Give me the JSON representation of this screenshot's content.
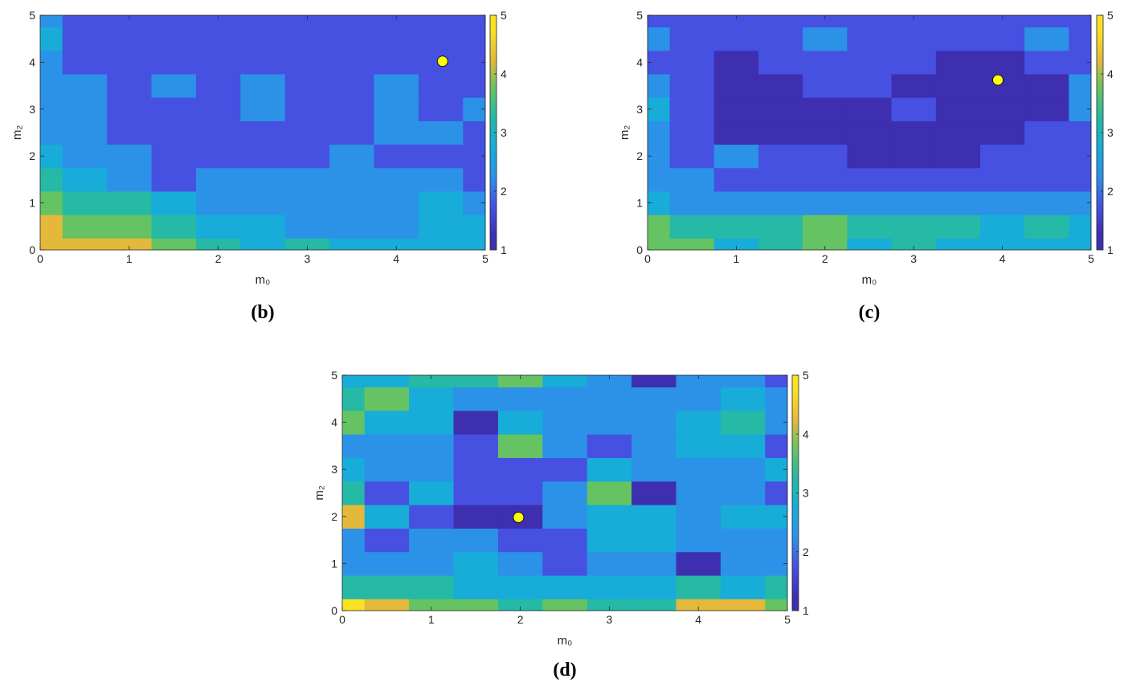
{
  "chart_data": [
    {
      "type": "contour",
      "panel_label": "(b)",
      "xlabel": "m₀",
      "ylabel": "m₂",
      "x": [
        0,
        0.5,
        1,
        1.5,
        2,
        2.5,
        3,
        3.5,
        4,
        4.5,
        5
      ],
      "y": [
        0,
        0.5,
        1,
        1.5,
        2,
        2.5,
        3,
        3.5,
        4,
        4.5,
        5
      ],
      "z": [
        [
          4.3,
          4.4,
          4.2,
          3.8,
          3.2,
          2.9,
          3.3,
          2.8,
          2.6,
          2.6,
          2.5
        ],
        [
          4.0,
          3.9,
          3.8,
          3.3,
          2.8,
          2.5,
          2.4,
          2.4,
          2.4,
          2.7,
          2.5
        ],
        [
          3.6,
          3.4,
          3.1,
          2.7,
          2.4,
          2.2,
          2.1,
          2.1,
          2.3,
          2.7,
          2.2
        ],
        [
          3.0,
          2.6,
          2.3,
          1.9,
          2.0,
          2.2,
          2.1,
          2.1,
          2.1,
          2.1,
          1.9
        ],
        [
          2.7,
          2.2,
          2.1,
          1.8,
          1.7,
          1.8,
          1.8,
          2.0,
          1.7,
          1.7,
          1.7
        ],
        [
          2.3,
          2.1,
          1.8,
          1.7,
          1.6,
          1.6,
          1.7,
          1.8,
          2.3,
          2.1,
          1.8
        ],
        [
          2.2,
          2.0,
          1.7,
          1.6,
          1.7,
          2.2,
          1.6,
          1.7,
          2.0,
          1.9,
          2.0
        ],
        [
          2.1,
          2.0,
          1.7,
          2.2,
          1.6,
          2.2,
          1.6,
          1.6,
          2.0,
          1.7,
          1.6
        ],
        [
          2.1,
          1.9,
          1.7,
          1.6,
          1.6,
          1.6,
          1.6,
          1.6,
          1.6,
          1.5,
          1.6
        ],
        [
          2.6,
          1.9,
          1.6,
          1.6,
          1.6,
          1.6,
          1.6,
          1.6,
          1.6,
          1.6,
          1.6
        ],
        [
          2.1,
          1.9,
          1.6,
          1.6,
          1.6,
          1.6,
          1.6,
          1.6,
          1.6,
          1.6,
          1.6
        ]
      ],
      "point": {
        "x": 4.52,
        "y": 4.02
      },
      "point_color": "#ffff00",
      "xlim": [
        0,
        5
      ],
      "ylim": [
        0,
        5
      ],
      "xticks": [
        0,
        1,
        2,
        3,
        4,
        5
      ],
      "yticks": [
        0,
        1,
        2,
        3,
        4,
        5
      ],
      "clim": [
        1,
        5
      ],
      "cticks": [
        1,
        2,
        3,
        4,
        5
      ]
    },
    {
      "type": "contour",
      "panel_label": "(c)",
      "xlabel": "m₀",
      "ylabel": "m₂",
      "x": [
        0,
        0.5,
        1,
        1.5,
        2,
        2.5,
        3,
        3.5,
        4,
        4.5,
        5
      ],
      "y": [
        0,
        0.5,
        1,
        1.5,
        2,
        2.5,
        3,
        3.5,
        4,
        4.5,
        5
      ],
      "z": [
        [
          3.9,
          3.6,
          2.5,
          3.4,
          3.5,
          2.9,
          3.3,
          2.9,
          2.8,
          2.7,
          2.6
        ],
        [
          3.5,
          3.3,
          3.3,
          3.3,
          3.5,
          3.3,
          3.1,
          3.0,
          2.8,
          3.0,
          2.8
        ],
        [
          2.6,
          2.4,
          2.3,
          2.3,
          2.3,
          2.2,
          2.2,
          2.2,
          2.1,
          2.2,
          2.0
        ],
        [
          2.2,
          2.0,
          1.8,
          1.6,
          1.6,
          1.5,
          1.6,
          1.6,
          1.8,
          1.7,
          1.7
        ],
        [
          2.1,
          1.8,
          2.2,
          1.7,
          1.5,
          1.3,
          1.3,
          1.4,
          1.6,
          1.7,
          1.8
        ],
        [
          2.3,
          1.7,
          1.4,
          1.3,
          1.3,
          1.3,
          1.3,
          1.3,
          1.4,
          1.5,
          1.8
        ],
        [
          2.8,
          1.7,
          1.3,
          1.3,
          1.3,
          1.4,
          1.6,
          1.4,
          1.3,
          1.4,
          2.1
        ],
        [
          2.2,
          1.7,
          1.3,
          1.3,
          1.6,
          1.7,
          1.4,
          1.3,
          1.3,
          1.4,
          2.2
        ],
        [
          1.9,
          1.7,
          1.4,
          1.6,
          1.6,
          1.6,
          1.7,
          1.3,
          1.3,
          1.5,
          1.7
        ],
        [
          2.0,
          1.7,
          1.5,
          1.6,
          2.0,
          1.6,
          1.6,
          1.6,
          1.6,
          2.0,
          1.6
        ],
        [
          1.8,
          1.7,
          1.6,
          1.6,
          1.6,
          1.6,
          1.6,
          1.6,
          1.6,
          1.6,
          1.6
        ]
      ],
      "point": {
        "x": 3.95,
        "y": 3.62
      },
      "point_color": "#ffff00",
      "xlim": [
        0,
        5
      ],
      "ylim": [
        0,
        5
      ],
      "xticks": [
        0,
        1,
        2,
        3,
        4,
        5
      ],
      "yticks": [
        0,
        1,
        2,
        3,
        4,
        5
      ],
      "clim": [
        1,
        5
      ],
      "cticks": [
        1,
        2,
        3,
        4,
        5
      ]
    },
    {
      "type": "contour",
      "panel_label": "(d)",
      "xlabel": "m₀",
      "ylabel": "m₂",
      "x": [
        0,
        0.5,
        1,
        1.5,
        2,
        2.5,
        3,
        3.5,
        4,
        4.5,
        5
      ],
      "y": [
        0,
        0.5,
        1,
        1.5,
        2,
        2.5,
        3,
        3.5,
        4,
        4.5,
        5
      ],
      "z": [
        [
          4.9,
          4.4,
          3.7,
          3.5,
          3.3,
          3.5,
          3.3,
          3.4,
          4.3,
          4.1,
          3.9
        ],
        [
          3.4,
          3.1,
          3.0,
          2.9,
          2.9,
          2.8,
          2.9,
          2.9,
          3.0,
          2.9,
          3.0
        ],
        [
          2.3,
          2.2,
          2.2,
          2.8,
          2.2,
          1.5,
          2.0,
          2.1,
          1.4,
          2.0,
          2.1
        ],
        [
          2.2,
          1.6,
          2.2,
          2.3,
          1.9,
          1.8,
          2.5,
          2.6,
          2.2,
          2.1,
          2.2
        ],
        [
          4.2,
          2.5,
          1.8,
          1.3,
          1.3,
          2.1,
          2.7,
          2.8,
          2.4,
          2.5,
          2.9
        ],
        [
          3.0,
          1.6,
          2.6,
          1.9,
          1.7,
          2.0,
          3.8,
          1.3,
          2.2,
          2.0,
          1.6
        ],
        [
          2.7,
          2.4,
          2.1,
          1.8,
          1.5,
          1.8,
          2.5,
          2.3,
          2.3,
          2.4,
          2.5
        ],
        [
          2.4,
          2.3,
          2.2,
          1.7,
          3.7,
          2.3,
          1.7,
          2.2,
          2.8,
          2.8,
          1.9
        ],
        [
          3.7,
          2.9,
          2.5,
          1.4,
          2.6,
          2.3,
          2.1,
          2.2,
          2.6,
          3.0,
          2.4
        ],
        [
          3.0,
          3.5,
          2.9,
          2.4,
          2.3,
          2.4,
          2.2,
          2.3,
          2.4,
          2.7,
          2.4
        ],
        [
          2.8,
          2.9,
          3.0,
          3.3,
          3.6,
          2.6,
          2.2,
          1.4,
          2.2,
          2.4,
          1.6
        ]
      ],
      "point": {
        "x": 1.98,
        "y": 1.98
      },
      "point_color": "#ffff00",
      "xlim": [
        0,
        5
      ],
      "ylim": [
        0,
        5
      ],
      "xticks": [
        0,
        1,
        2,
        3,
        4,
        5
      ],
      "yticks": [
        0,
        1,
        2,
        3,
        4,
        5
      ],
      "clim": [
        1,
        5
      ],
      "cticks": [
        1,
        2,
        3,
        4,
        5
      ]
    }
  ],
  "levels": [
    1,
    1.5,
    2,
    2.5,
    3,
    3.5,
    4,
    4.5,
    5
  ],
  "band_colors": [
    "#3d2fb0",
    "#4651e1",
    "#2b92e8",
    "#18acd8",
    "#25b9a6",
    "#66c363",
    "#e4b93b",
    "#f9e224"
  ]
}
